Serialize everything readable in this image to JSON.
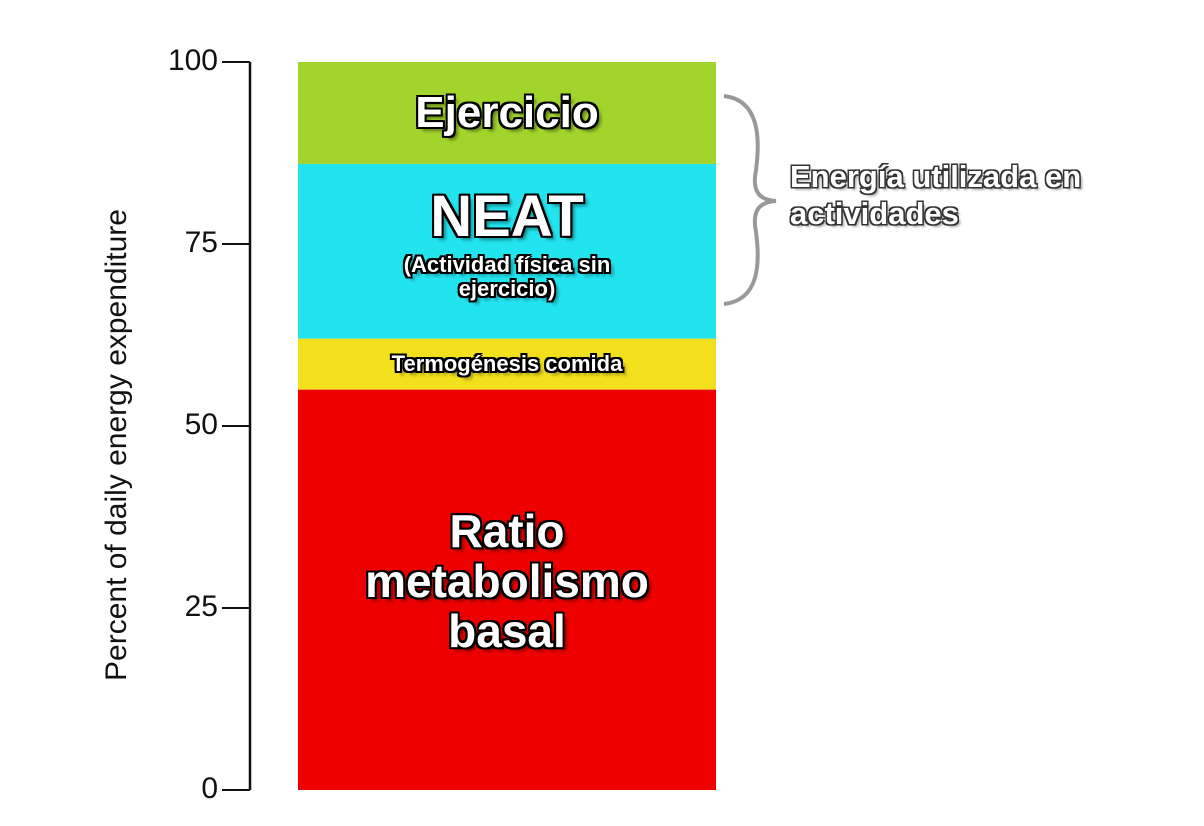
{
  "chart_data": {
    "type": "stacked_bar",
    "y_label": "Percent of daily energy expenditure",
    "categories": [
      null
    ],
    "series": [
      {
        "name": "Ratio metabolismo basal",
        "color": "#ee0000",
        "values": [
          55
        ]
      },
      {
        "name": "Termogénesis comida",
        "color": "#f2e01c",
        "values": [
          7
        ]
      },
      {
        "name": "NEAT",
        "note": "(Actividad física sin ejercicio)",
        "color": "#22e4ef",
        "values": [
          24
        ]
      },
      {
        "name": "Ejercicio",
        "color": "#a2d42c",
        "values": [
          14
        ]
      }
    ],
    "annotation": "Energía utilizada en actividades",
    "ylim": [
      0,
      100
    ],
    "yticks": [
      0,
      25,
      50,
      75,
      100
    ]
  }
}
